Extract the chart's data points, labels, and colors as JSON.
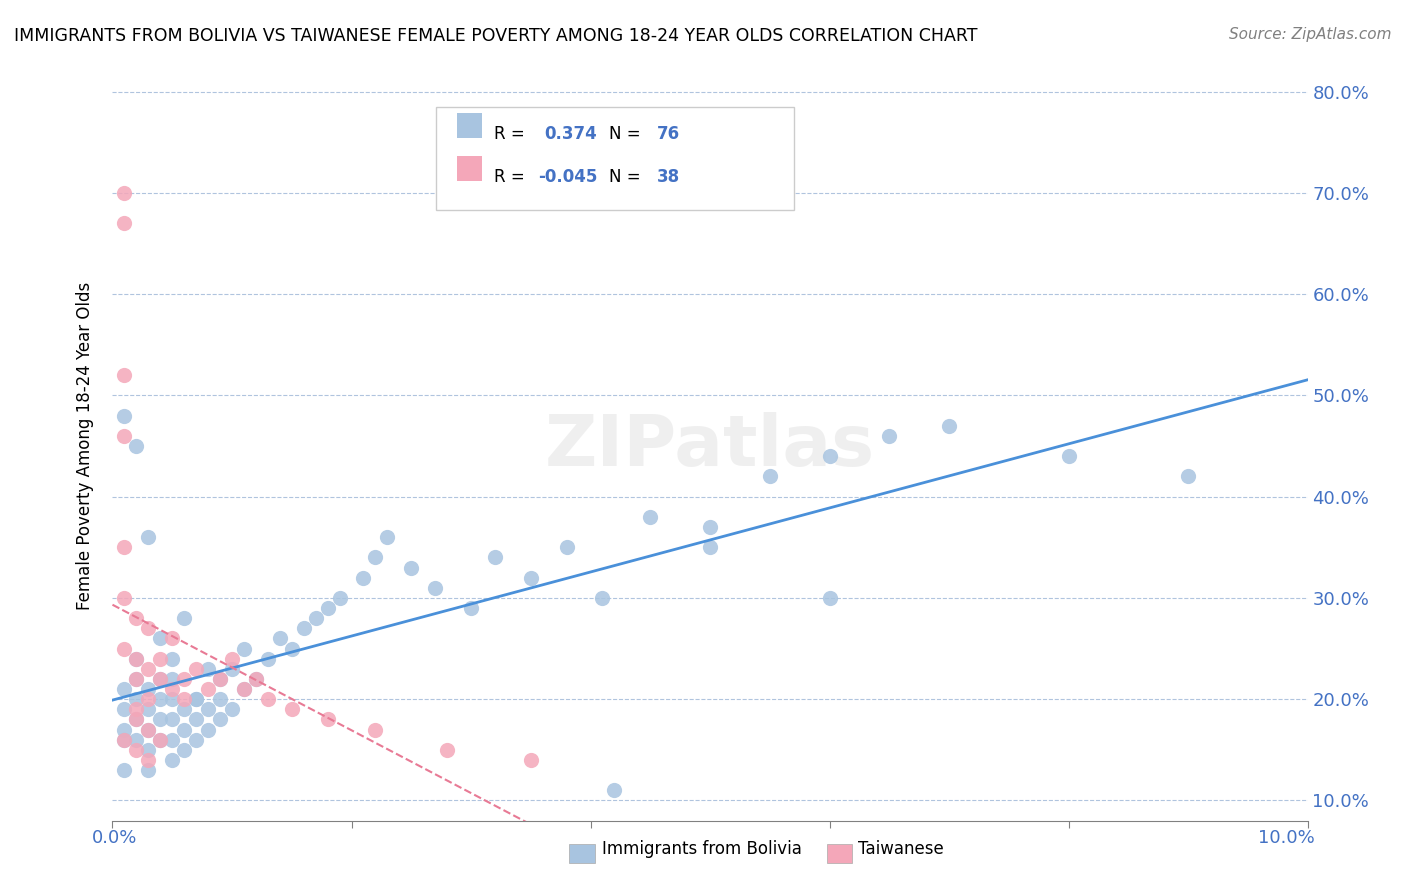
{
  "title": "IMMIGRANTS FROM BOLIVIA VS TAIWANESE FEMALE POVERTY AMONG 18-24 YEAR OLDS CORRELATION CHART",
  "source": "Source: ZipAtlas.com",
  "ylabel": "Female Poverty Among 18-24 Year Olds",
  "y_ticks": [
    0.1,
    0.2,
    0.3,
    0.4,
    0.5,
    0.6,
    0.7,
    0.8
  ],
  "y_tick_labels": [
    "10.0%",
    "20.0%",
    "30.0%",
    "40.0%",
    "50.0%",
    "60.0%",
    "70.0%",
    "80.0%"
  ],
  "color_blue": "#a8c4e0",
  "color_pink": "#f4a7b9",
  "color_blue_line": "#4a90d9",
  "color_pink_line": "#e87a95",
  "color_blue_text": "#4472c4",
  "bolivia_x": [
    0.001,
    0.001,
    0.001,
    0.002,
    0.002,
    0.002,
    0.002,
    0.002,
    0.003,
    0.003,
    0.003,
    0.003,
    0.004,
    0.004,
    0.004,
    0.004,
    0.005,
    0.005,
    0.005,
    0.005,
    0.005,
    0.006,
    0.006,
    0.006,
    0.007,
    0.007,
    0.007,
    0.008,
    0.008,
    0.008,
    0.009,
    0.009,
    0.009,
    0.01,
    0.01,
    0.011,
    0.011,
    0.012,
    0.013,
    0.014,
    0.015,
    0.016,
    0.017,
    0.018,
    0.019,
    0.021,
    0.022,
    0.023,
    0.025,
    0.027,
    0.03,
    0.032,
    0.035,
    0.038,
    0.041,
    0.045,
    0.05,
    0.055,
    0.06,
    0.065,
    0.07,
    0.08,
    0.001,
    0.002,
    0.003,
    0.004,
    0.005,
    0.006,
    0.007,
    0.05,
    0.06,
    0.09,
    0.001,
    0.003,
    0.042,
    0.001
  ],
  "bolivia_y": [
    0.17,
    0.19,
    0.21,
    0.16,
    0.18,
    0.2,
    0.22,
    0.24,
    0.15,
    0.17,
    0.19,
    0.21,
    0.16,
    0.18,
    0.2,
    0.22,
    0.14,
    0.16,
    0.18,
    0.2,
    0.22,
    0.15,
    0.17,
    0.19,
    0.16,
    0.18,
    0.2,
    0.17,
    0.19,
    0.23,
    0.18,
    0.2,
    0.22,
    0.19,
    0.23,
    0.21,
    0.25,
    0.22,
    0.24,
    0.26,
    0.25,
    0.27,
    0.28,
    0.29,
    0.3,
    0.32,
    0.34,
    0.36,
    0.33,
    0.31,
    0.29,
    0.34,
    0.32,
    0.35,
    0.3,
    0.38,
    0.37,
    0.42,
    0.44,
    0.46,
    0.47,
    0.44,
    0.48,
    0.45,
    0.36,
    0.26,
    0.24,
    0.28,
    0.2,
    0.35,
    0.3,
    0.42,
    0.13,
    0.13,
    0.11,
    0.16
  ],
  "taiwanese_x": [
    0.001,
    0.001,
    0.001,
    0.001,
    0.001,
    0.002,
    0.002,
    0.002,
    0.002,
    0.003,
    0.003,
    0.003,
    0.004,
    0.004,
    0.005,
    0.005,
    0.006,
    0.006,
    0.007,
    0.008,
    0.009,
    0.01,
    0.011,
    0.012,
    0.013,
    0.015,
    0.018,
    0.022,
    0.028,
    0.035,
    0.001,
    0.001,
    0.001,
    0.002,
    0.002,
    0.003,
    0.003,
    0.004
  ],
  "taiwanese_y": [
    0.7,
    0.67,
    0.52,
    0.3,
    0.25,
    0.28,
    0.24,
    0.22,
    0.19,
    0.27,
    0.23,
    0.2,
    0.24,
    0.22,
    0.26,
    0.21,
    0.22,
    0.2,
    0.23,
    0.21,
    0.22,
    0.24,
    0.21,
    0.22,
    0.2,
    0.19,
    0.18,
    0.17,
    0.15,
    0.14,
    0.46,
    0.35,
    0.16,
    0.18,
    0.15,
    0.17,
    0.14,
    0.16
  ]
}
